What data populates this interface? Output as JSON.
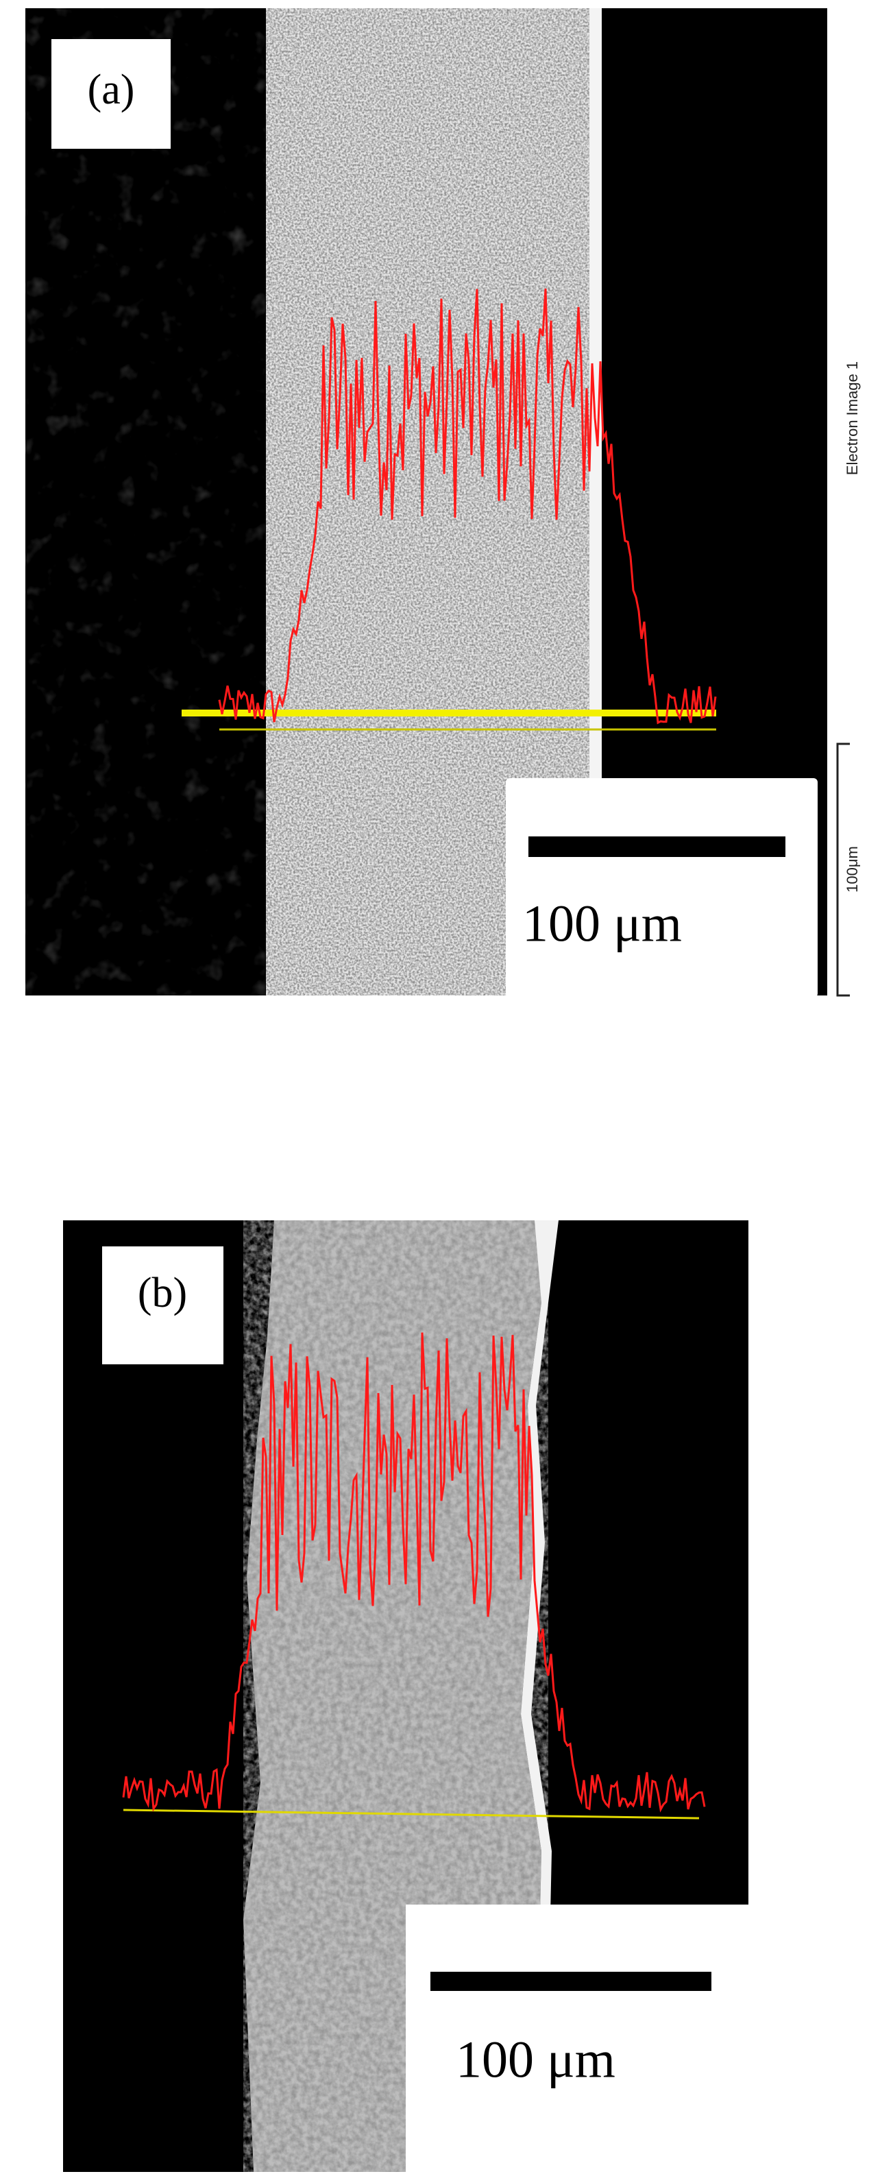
{
  "panels": [
    {
      "label": "(a)",
      "scale_bar": "100 μm",
      "side_caption": "Electron Image 1",
      "side_scale": "100μm"
    },
    {
      "label": "(b)",
      "scale_bar": "100 μm"
    }
  ]
}
